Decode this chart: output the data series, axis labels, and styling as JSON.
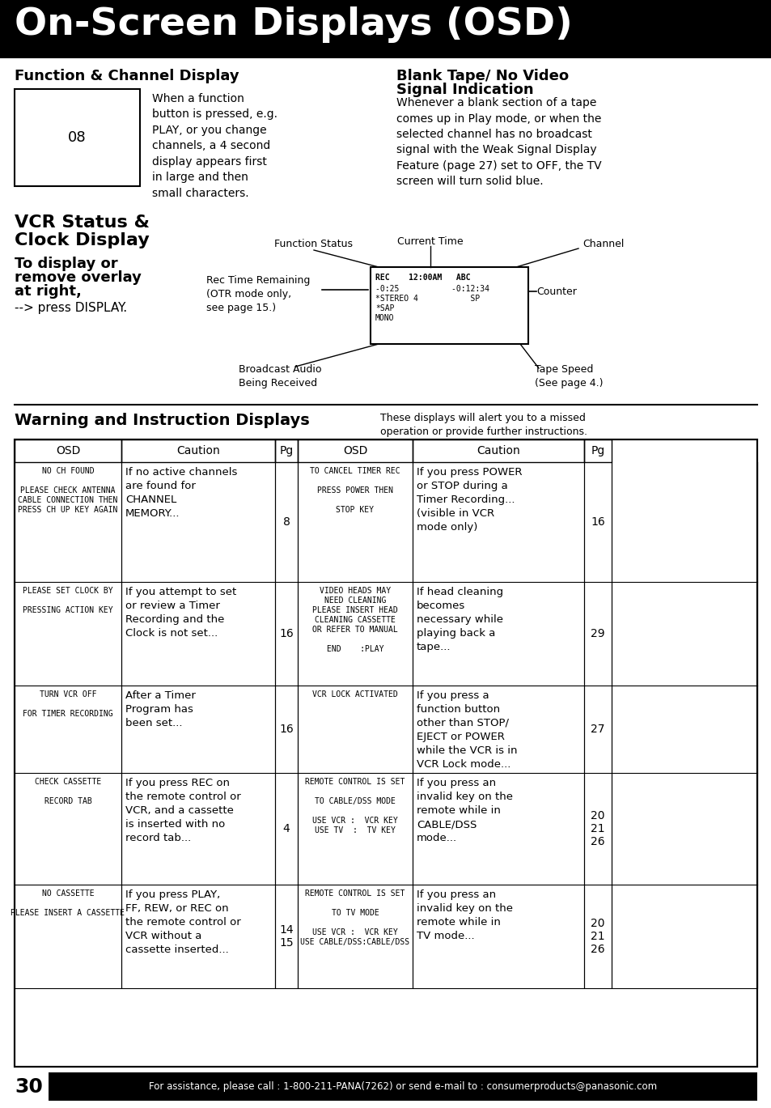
{
  "title": "On-Screen Displays (OSD)",
  "title_bg": "#000000",
  "title_color": "#ffffff",
  "page_bg": "#ffffff",
  "section1_title": "Function & Channel Display",
  "section2_title_line1": "Blank Tape/ No Video",
  "section2_title_line2": "Signal Indication",
  "section1_text": "When a function\nbutton is pressed, e.g.\nPLAY, or you change\nchannels, a 4 second\ndisplay appears first\nin large and then\nsmall characters.",
  "section2_text": "Whenever a blank section of a tape\ncomes up in Play mode, or when the\nselected channel has no broadcast\nsignal with the Weak Signal Display\nFeature (page 27) set to OFF, the TV\nscreen will turn solid blue.",
  "vcr_title_line1": "VCR Status &",
  "vcr_title_line2": "Clock Display",
  "vcr_sub1": "To display or",
  "vcr_sub2": "remove overlay",
  "vcr_sub3": "at right,",
  "vcr_press": "--> press DISPLAY.",
  "label_func_status": "Function Status",
  "label_curr_time": "Current Time",
  "label_channel": "Channel",
  "label_counter": "Counter",
  "label_tape_speed": "Tape Speed\n(See page 4.)",
  "label_broadcast": "Broadcast Audio\nBeing Received",
  "label_rec_time": "Rec Time Remaining\n(OTR mode only,\nsee page 15.)",
  "warning_title": "Warning and Instruction Displays",
  "warning_sub": "These displays will alert you to a missed\noperation or provide further instructions.",
  "table_headers": [
    "OSD",
    "Caution",
    "Pg",
    "OSD",
    "Caution",
    "Pg"
  ],
  "rows": [
    {
      "osd1": "NO CH FOUND\n\nPLEASE CHECK ANTENNA\nCABLE CONNECTION THEN\nPRESS CH UP KEY AGAIN",
      "caution1": "If no active channels\nare found for\nCHANNEL\nMEMORY...",
      "pg1": "8",
      "osd2": "TO CANCEL TIMER REC\n\nPRESS POWER THEN\n\nSTOP KEY",
      "caution2": "If you press POWER\nor STOP during a\nTimer Recording...\n(visible in VCR\nmode only)",
      "pg2": "16"
    },
    {
      "osd1": "PLEASE SET CLOCK BY\n\nPRESSING ACTION KEY",
      "caution1": "If you attempt to set\nor review a Timer\nRecording and the\nClock is not set...",
      "pg1": "16",
      "osd2": "VIDEO HEADS MAY\nNEED CLEANING\nPLEASE INSERT HEAD\nCLEANING CASSETTE\nOR REFER TO MANUAL\n\nEND    :PLAY",
      "caution2": "If head cleaning\nbecomes\nnecessary while\nplaying back a\ntape...",
      "pg2": "29"
    },
    {
      "osd1": "TURN VCR OFF\n\nFOR TIMER RECORDING",
      "caution1": "After a Timer\nProgram has\nbeen set...",
      "pg1": "16",
      "osd2": "VCR LOCK ACTIVATED",
      "caution2": "If you press a\nfunction button\nother than STOP/\nEJECT or POWER\nwhile the VCR is in\nVCR Lock mode...",
      "pg2": "27"
    },
    {
      "osd1": "CHECK CASSETTE\n\nRECORD TAB",
      "caution1": "If you press REC on\nthe remote control or\nVCR, and a cassette\nis inserted with no\nrecord tab...",
      "pg1": "4",
      "osd2": "REMOTE CONTROL IS SET\n\nTO CABLE/DSS MODE\n\nUSE VCR :  VCR KEY\nUSE TV  :  TV KEY",
      "caution2": "If you press an\ninvalid key on the\nremote while in\nCABLE/DSS\nmode...",
      "pg2": "20\n21\n26"
    },
    {
      "osd1": "NO CASSETTE\n\nPLEASE INSERT A CASSETTE",
      "caution1": "If you press PLAY,\nFF, REW, or REC on\nthe remote control or\nVCR without a\ncassette inserted...",
      "pg1": "14\n15",
      "osd2": "REMOTE CONTROL IS SET\n\nTO TV MODE\n\nUSE VCR :  VCR KEY\nUSE CABLE/DSS:CABLE/DSS",
      "caution2": "If you press an\ninvalid key on the\nremote while in\nTV mode...",
      "pg2": "20\n21\n26"
    }
  ],
  "footer_page": "30",
  "footer_text": "For assistance, please call : 1-800-211-PANA(7262) or send e-mail to : consumerproducts@panasonic.com"
}
